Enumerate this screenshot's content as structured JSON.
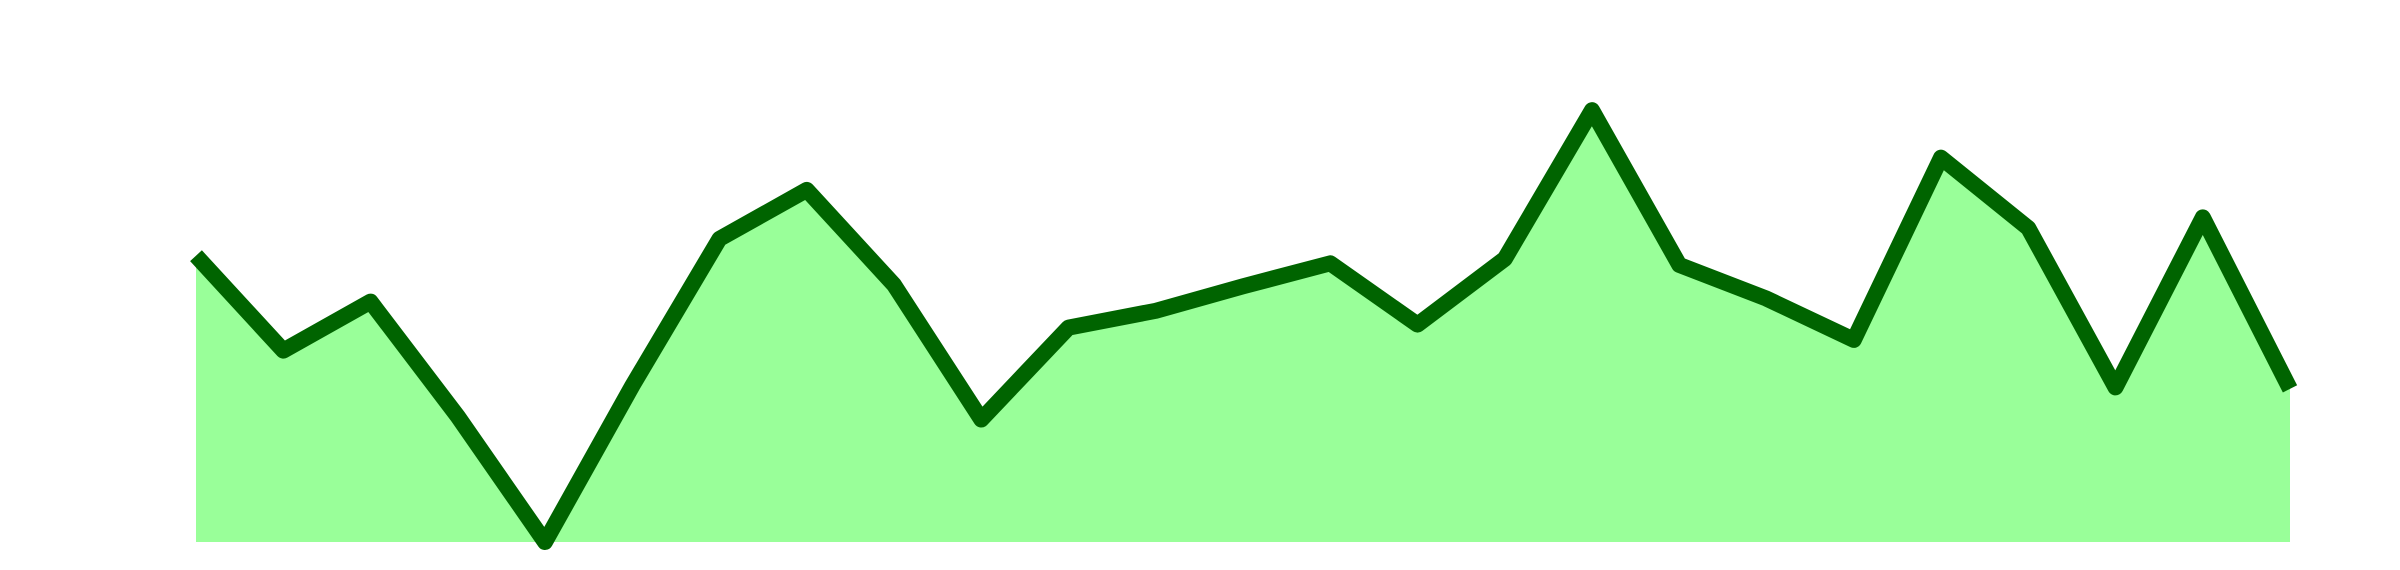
{
  "chart_data": {
    "type": "area",
    "values": [
      187,
      125,
      157,
      82,
      0,
      102,
      198,
      230,
      168,
      80,
      140,
      151,
      167,
      182,
      142,
      185,
      282,
      181,
      159,
      132,
      251,
      205,
      101,
      212,
      100
    ],
    "ylim": [
      0,
      354
    ],
    "fill_color": "#99ff99",
    "line_color": "#006400"
  }
}
